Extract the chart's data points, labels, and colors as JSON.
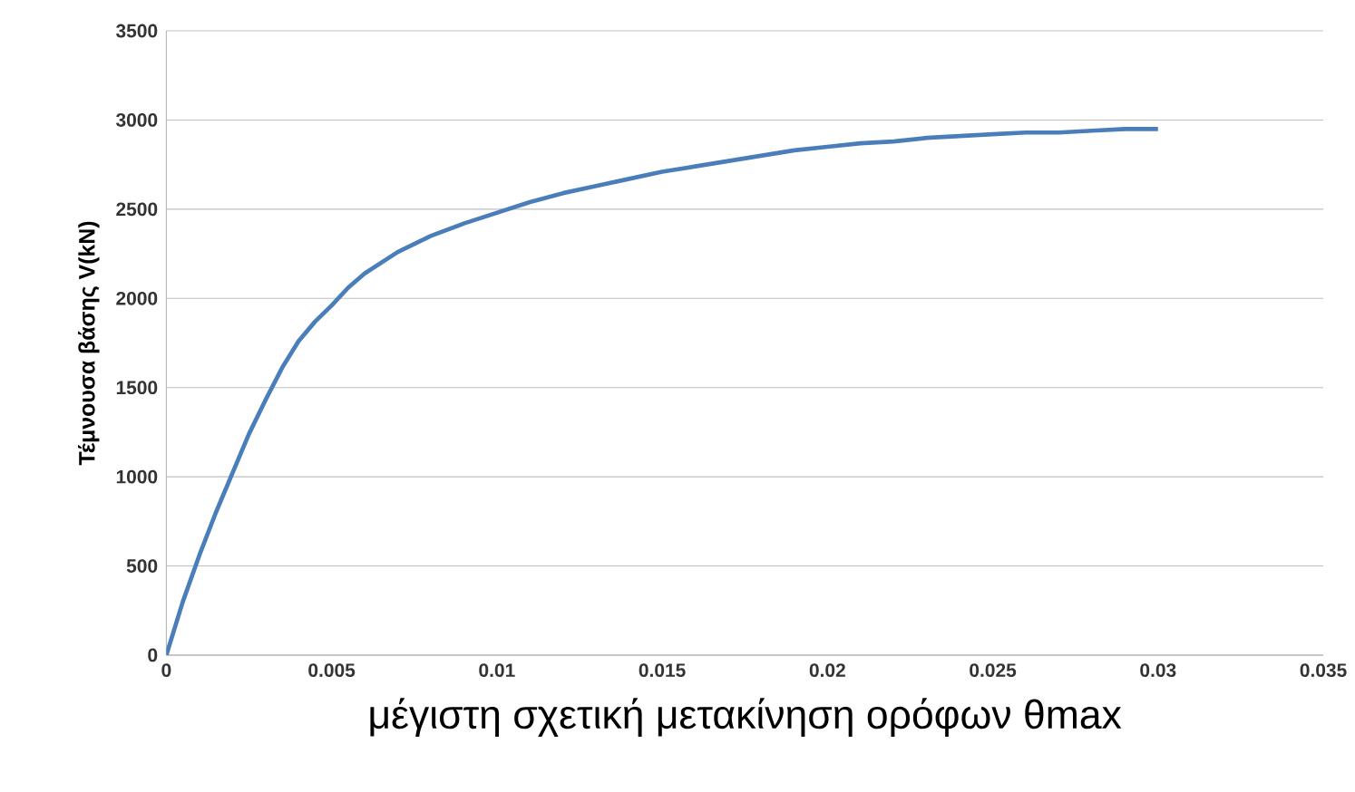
{
  "chart_data": {
    "type": "line",
    "xlabel": "μέγιστη σχετική μετακίνηση ορόφων θmax",
    "ylabel": "Τέμνουσα βάσης V(kN)",
    "x": [
      0,
      0.0005,
      0.001,
      0.0015,
      0.002,
      0.0025,
      0.003,
      0.0035,
      0.004,
      0.0045,
      0.005,
      0.0055,
      0.006,
      0.007,
      0.008,
      0.009,
      0.01,
      0.011,
      0.012,
      0.013,
      0.014,
      0.015,
      0.016,
      0.017,
      0.018,
      0.019,
      0.02,
      0.021,
      0.022,
      0.023,
      0.024,
      0.025,
      0.026,
      0.027,
      0.028,
      0.029,
      0.03
    ],
    "series": [
      {
        "color": "#4a7ebb",
        "values": [
          0,
          300,
          560,
          800,
          1020,
          1240,
          1430,
          1610,
          1760,
          1870,
          1960,
          2060,
          2140,
          2260,
          2350,
          2420,
          2480,
          2540,
          2590,
          2630,
          2670,
          2710,
          2740,
          2770,
          2800,
          2830,
          2850,
          2870,
          2880,
          2900,
          2910,
          2920,
          2930,
          2930,
          2940,
          2950,
          2950
        ]
      }
    ],
    "xlim": [
      0,
      0.035
    ],
    "ylim": [
      0,
      3500
    ],
    "xticks": [
      0,
      0.005,
      0.01,
      0.015,
      0.02,
      0.025,
      0.03,
      0.035
    ],
    "yticks": [
      0,
      500,
      1000,
      1500,
      2000,
      2500,
      3000,
      3500
    ],
    "grid": "y",
    "marker": "none",
    "line_style": "solid"
  }
}
